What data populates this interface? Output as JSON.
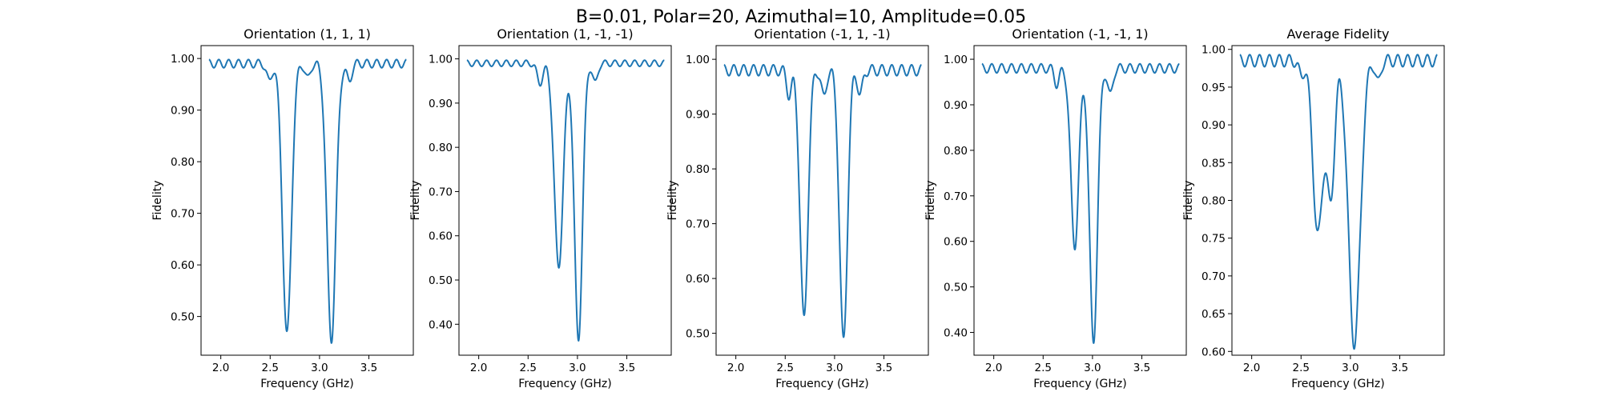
{
  "figure": {
    "suptitle": "B=0.01, Polar=20, Azimuthal=10, Amplitude=0.05"
  },
  "chart_data": [
    {
      "type": "line",
      "title": "Orientation (1, 1, 1)",
      "xlabel": "Frequency (GHz)",
      "ylabel": "Fidelity",
      "xlim": [
        1.8,
        3.95
      ],
      "ylim": [
        0.425,
        1.025
      ],
      "xticks": [
        2.0,
        2.5,
        3.0,
        3.5
      ],
      "yticks": [
        0.5,
        0.6,
        0.7,
        0.8,
        0.9,
        1.0
      ],
      "line_color": "#1f77b4",
      "baseline": 0.99,
      "ripple": 0.008,
      "dips": [
        {
          "center": 2.49,
          "depth": 0.035,
          "width": 0.025
        },
        {
          "center": 2.67,
          "depth": 0.525,
          "width": 0.045
        },
        {
          "center": 2.88,
          "depth": 0.03,
          "width": 0.025
        },
        {
          "center": 3.12,
          "depth": 0.535,
          "width": 0.045
        },
        {
          "center": 3.3,
          "depth": 0.035,
          "width": 0.025
        }
      ]
    },
    {
      "type": "line",
      "title": "Orientation (1, -1, -1)",
      "xlabel": "Frequency (GHz)",
      "ylabel": "Fidelity",
      "xlim": [
        1.8,
        3.95
      ],
      "ylim": [
        0.33,
        1.03
      ],
      "xticks": [
        2.0,
        2.5,
        3.0,
        3.5
      ],
      "yticks": [
        0.4,
        0.5,
        0.6,
        0.7,
        0.8,
        0.9,
        1.0
      ],
      "line_color": "#1f77b4",
      "baseline": 0.99,
      "ripple": 0.007,
      "dips": [
        {
          "center": 2.62,
          "depth": 0.045,
          "width": 0.03
        },
        {
          "center": 2.81,
          "depth": 0.46,
          "width": 0.045
        },
        {
          "center": 3.01,
          "depth": 0.625,
          "width": 0.04
        },
        {
          "center": 3.18,
          "depth": 0.045,
          "width": 0.025
        }
      ]
    },
    {
      "type": "line",
      "title": "Orientation (-1, 1, -1)",
      "xlabel": "Frequency (GHz)",
      "ylabel": "Fidelity",
      "xlim": [
        1.8,
        3.95
      ],
      "ylim": [
        0.46,
        1.025
      ],
      "xticks": [
        2.0,
        2.5,
        3.0,
        3.5
      ],
      "yticks": [
        0.5,
        0.6,
        0.7,
        0.8,
        0.9,
        1.0
      ],
      "line_color": "#1f77b4",
      "baseline": 0.98,
      "ripple": 0.01,
      "dips": [
        {
          "center": 2.54,
          "depth": 0.045,
          "width": 0.025
        },
        {
          "center": 2.69,
          "depth": 0.455,
          "width": 0.04
        },
        {
          "center": 2.89,
          "depth": 0.05,
          "width": 0.025
        },
        {
          "center": 3.09,
          "depth": 0.495,
          "width": 0.04
        },
        {
          "center": 3.26,
          "depth": 0.045,
          "width": 0.025
        }
      ]
    },
    {
      "type": "line",
      "title": "Orientation (-1, -1, 1)",
      "xlabel": "Frequency (GHz)",
      "ylabel": "Fidelity",
      "xlim": [
        1.8,
        3.95
      ],
      "ylim": [
        0.35,
        1.03
      ],
      "xticks": [
        2.0,
        2.5,
        3.0,
        3.5
      ],
      "yticks": [
        0.4,
        0.5,
        0.6,
        0.7,
        0.8,
        0.9,
        1.0
      ],
      "line_color": "#1f77b4",
      "baseline": 0.98,
      "ripple": 0.01,
      "dips": [
        {
          "center": 2.64,
          "depth": 0.035,
          "width": 0.025
        },
        {
          "center": 2.82,
          "depth": 0.39,
          "width": 0.04
        },
        {
          "center": 3.01,
          "depth": 0.6,
          "width": 0.04
        },
        {
          "center": 3.18,
          "depth": 0.06,
          "width": 0.025
        }
      ]
    },
    {
      "type": "line",
      "title": "Average Fidelity",
      "xlabel": "Frequency (GHz)",
      "ylabel": "Fidelity",
      "xlim": [
        1.8,
        3.95
      ],
      "ylim": [
        0.595,
        1.005
      ],
      "xticks": [
        2.0,
        2.5,
        3.0,
        3.5
      ],
      "yticks": [
        0.6,
        0.65,
        0.7,
        0.75,
        0.8,
        0.85,
        0.9,
        0.95,
        1.0
      ],
      "line_color": "#1f77b4",
      "baseline": 0.985,
      "ripple": 0.008,
      "dips": [
        {
          "center": 2.5,
          "depth": 0.02,
          "width": 0.025
        },
        {
          "center": 2.67,
          "depth": 0.23,
          "width": 0.05
        },
        {
          "center": 2.8,
          "depth": 0.18,
          "width": 0.04
        },
        {
          "center": 3.04,
          "depth": 0.375,
          "width": 0.06
        },
        {
          "center": 3.28,
          "depth": 0.03,
          "width": 0.025
        }
      ]
    }
  ]
}
